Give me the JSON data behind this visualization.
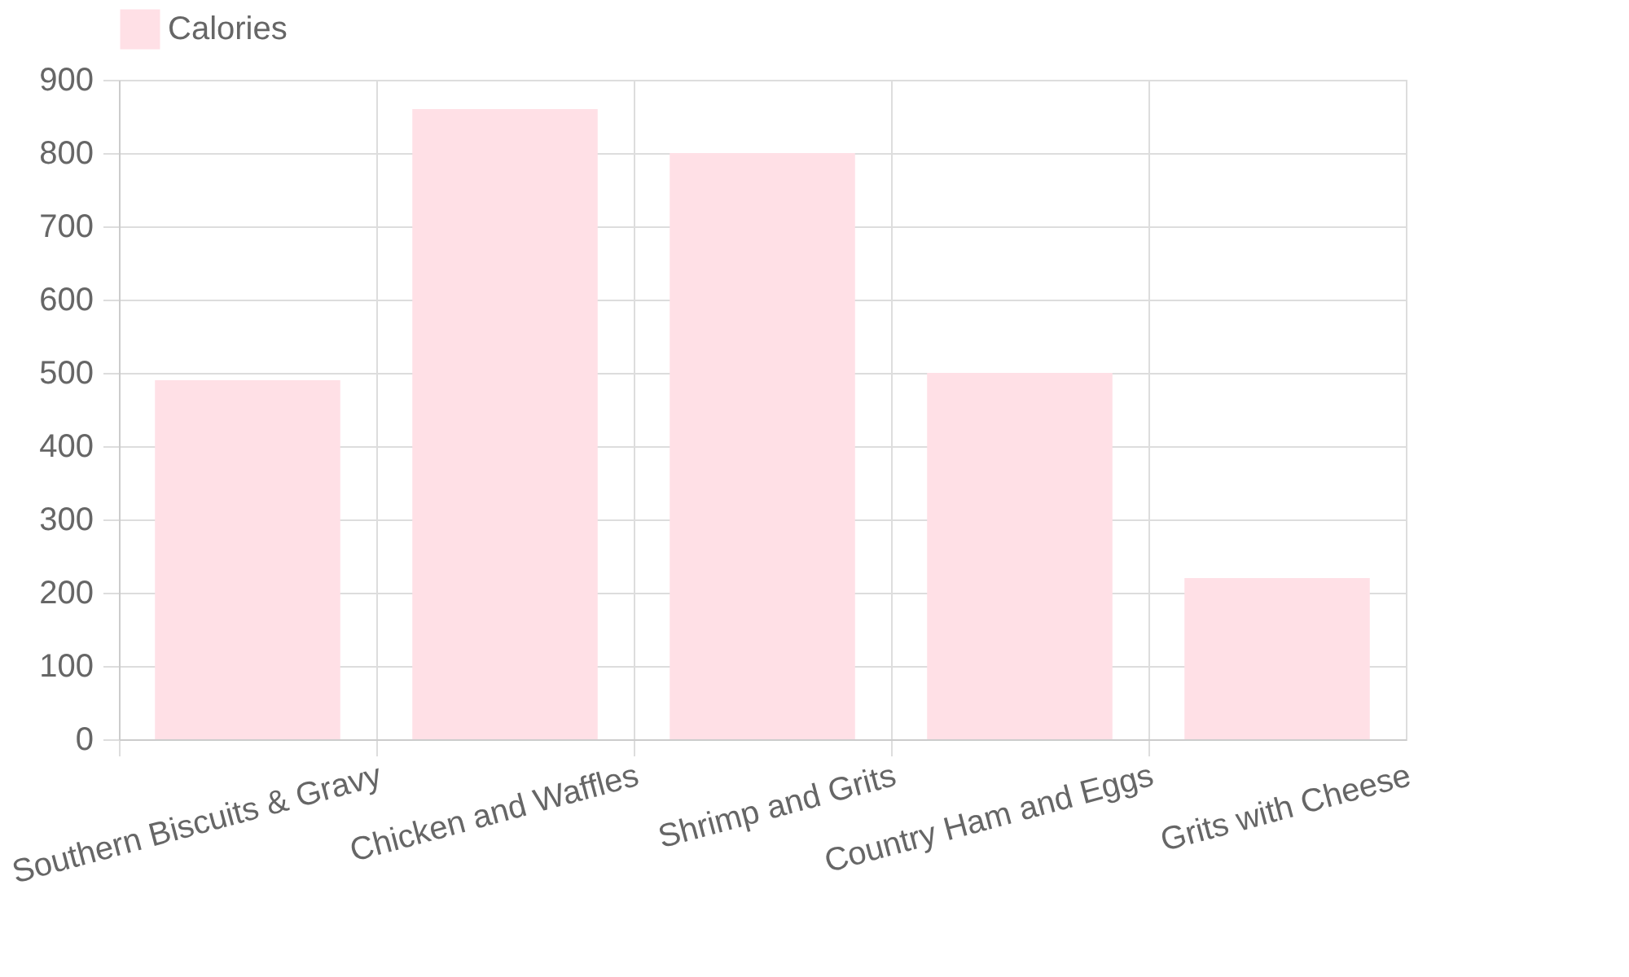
{
  "chart_data": {
    "type": "bar",
    "categories": [
      "Southern Biscuits & Gravy",
      "Chicken and Waffles",
      "Shrimp and Grits",
      "Country Ham and Eggs",
      "Grits with Cheese"
    ],
    "series": [
      {
        "name": "Calories",
        "color": "#ffe0e6",
        "values": [
          490,
          860,
          800,
          500,
          220
        ]
      }
    ],
    "ylim": [
      0,
      900
    ],
    "yticks": [
      0,
      100,
      200,
      300,
      400,
      500,
      600,
      700,
      800,
      900
    ],
    "grid": true,
    "legend": "top"
  }
}
